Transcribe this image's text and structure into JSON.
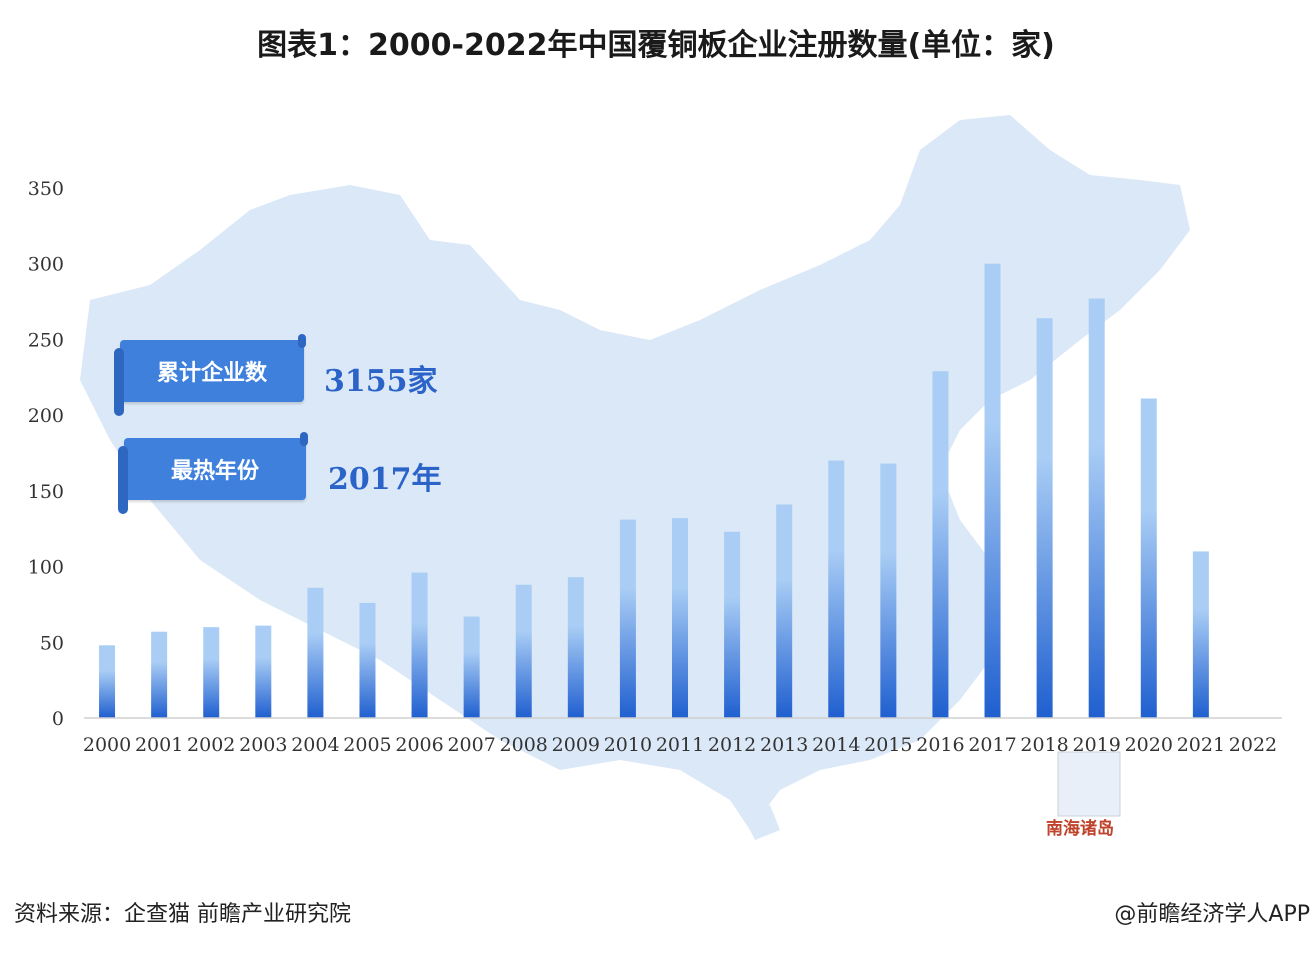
{
  "title": "图表1：2000-2022年中国覆铜板企业注册数量(单位：家)",
  "info": {
    "cumulative_label": "累计企业数",
    "cumulative_value": "3155家",
    "hottest_label": "最热年份",
    "hottest_value": "2017年"
  },
  "map_label": "南海诸岛",
  "source": "资料来源：企查猫 前瞻产业研究院",
  "credit": "@前瞻经济学人APP",
  "colors": {
    "bar_top": "#a9cdf5",
    "bar_bottom": "#1f5fcf",
    "map": "#dbe8f7",
    "ribbon": "#3f80dd"
  },
  "chart_data": {
    "type": "bar",
    "title": "图表1：2000-2022年中国覆铜板企业注册数量(单位：家)",
    "xlabel": "",
    "ylabel": "",
    "ylim": [
      0,
      350
    ],
    "yticks": [
      0,
      50,
      100,
      150,
      200,
      250,
      300,
      350
    ],
    "grid": false,
    "categories": [
      "2000",
      "2001",
      "2002",
      "2003",
      "2004",
      "2005",
      "2006",
      "2007",
      "2008",
      "2009",
      "2010",
      "2011",
      "2012",
      "2013",
      "2014",
      "2015",
      "2016",
      "2017",
      "2018",
      "2019",
      "2020",
      "2021",
      "2022"
    ],
    "values": [
      48,
      57,
      60,
      61,
      86,
      76,
      96,
      67,
      88,
      93,
      131,
      132,
      123,
      141,
      170,
      168,
      229,
      300,
      264,
      277,
      211,
      110,
      0
    ]
  }
}
